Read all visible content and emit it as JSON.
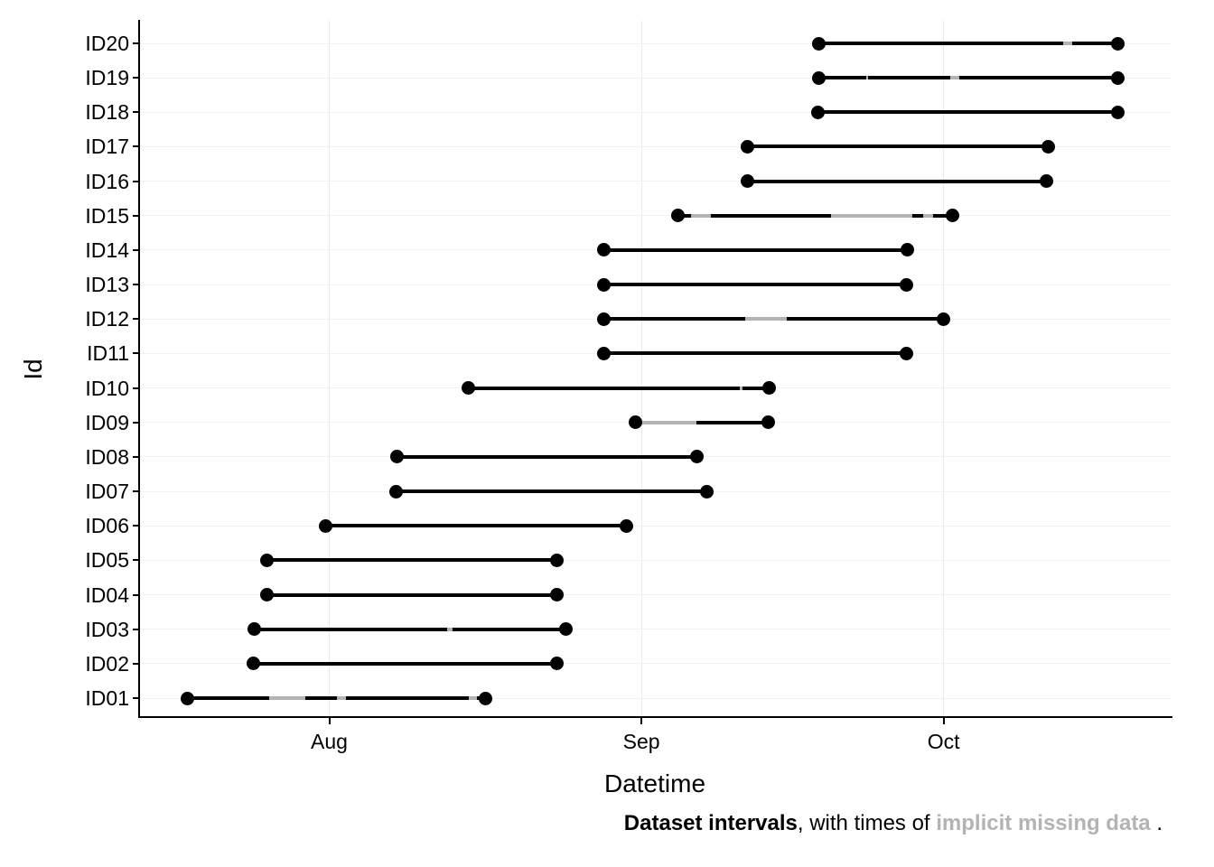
{
  "figure": {
    "x_axis_title": "Datetime",
    "y_axis_title": "Id",
    "caption": {
      "intervals_bold": "Dataset intervals",
      "middle_text": ", with times of ",
      "missing_bold_gray": "implicit missing data",
      "trailing_text": " ."
    },
    "colors": {
      "interval": "#000000",
      "missing_data": "#b3b3b3",
      "grid_horizontal": "#f2f2f2",
      "grid_vertical": "#e9e9e9",
      "axis": "#000000",
      "background": "#ffffff",
      "caption_gray": "#b3b3b3"
    }
  },
  "chart_data": {
    "type": "interval",
    "title": "Dataset intervals, with times of implicit missing data.",
    "xlabel": "Datetime",
    "ylabel": "Id",
    "unit": "days since Aug 1 (day 0 = Aug 1, 31 = Sep 1, 61 = Oct 1)",
    "day_domain": [
      -18.8,
      83.5
    ],
    "grid": true,
    "x_ticks": [
      {
        "label": "Aug",
        "day": 0
      },
      {
        "label": "Sep",
        "day": 31
      },
      {
        "label": "Oct",
        "day": 61
      }
    ],
    "rows": [
      {
        "id": "ID20",
        "start": 48.6,
        "end": 78.3,
        "gaps": [
          [
            72.9,
            73.8
          ]
        ]
      },
      {
        "id": "ID19",
        "start": 48.6,
        "end": 78.3,
        "gaps": [
          [
            53.3,
            53.5
          ],
          [
            61.7,
            62.6
          ]
        ]
      },
      {
        "id": "ID18",
        "start": 48.5,
        "end": 78.3,
        "gaps": []
      },
      {
        "id": "ID17",
        "start": 41.5,
        "end": 71.4,
        "gaps": []
      },
      {
        "id": "ID16",
        "start": 41.5,
        "end": 71.2,
        "gaps": []
      },
      {
        "id": "ID15",
        "start": 34.6,
        "end": 61.9,
        "gaps": [
          [
            35.9,
            37.9
          ],
          [
            49.8,
            57.9
          ],
          [
            59.0,
            60.0
          ]
        ]
      },
      {
        "id": "ID14",
        "start": 27.3,
        "end": 57.4,
        "gaps": []
      },
      {
        "id": "ID13",
        "start": 27.3,
        "end": 57.3,
        "gaps": []
      },
      {
        "id": "ID12",
        "start": 27.3,
        "end": 61.0,
        "gaps": [
          [
            41.3,
            45.4
          ]
        ]
      },
      {
        "id": "ID11",
        "start": 27.3,
        "end": 57.3,
        "gaps": []
      },
      {
        "id": "ID10",
        "start": 13.8,
        "end": 43.7,
        "gaps": [
          [
            40.8,
            41.0
          ]
        ]
      },
      {
        "id": "ID09",
        "start": 30.4,
        "end": 43.6,
        "gaps": [
          [
            30.6,
            36.5
          ]
        ]
      },
      {
        "id": "ID08",
        "start": 6.7,
        "end": 36.5,
        "gaps": []
      },
      {
        "id": "ID07",
        "start": 6.6,
        "end": 37.5,
        "gaps": []
      },
      {
        "id": "ID06",
        "start": -0.4,
        "end": 29.5,
        "gaps": []
      },
      {
        "id": "ID05",
        "start": -6.2,
        "end": 22.6,
        "gaps": []
      },
      {
        "id": "ID04",
        "start": -6.2,
        "end": 22.6,
        "gaps": []
      },
      {
        "id": "ID03",
        "start": -7.4,
        "end": 23.5,
        "gaps": [
          [
            11.7,
            12.2
          ]
        ]
      },
      {
        "id": "ID02",
        "start": -7.5,
        "end": 22.6,
        "gaps": []
      },
      {
        "id": "ID01",
        "start": -14.1,
        "end": 15.5,
        "gaps": [
          [
            -6.0,
            -2.4
          ],
          [
            0.8,
            1.7
          ],
          [
            13.9,
            14.7
          ]
        ]
      }
    ]
  }
}
